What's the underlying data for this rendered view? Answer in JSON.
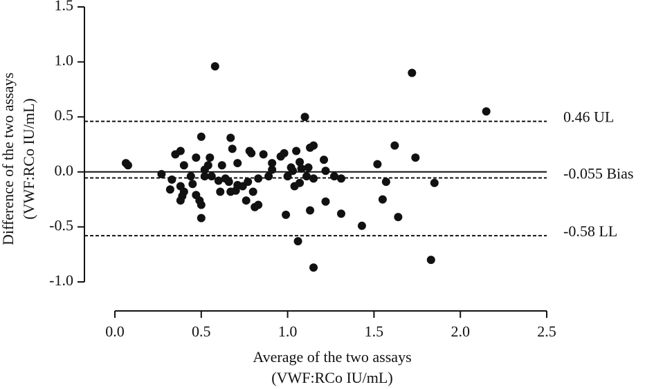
{
  "chart_data": {
    "type": "scatter",
    "xlabel": [
      "Average of the two assays",
      "(VWF:RCo IU/mL)"
    ],
    "ylabel": [
      "Difference of the two assays",
      "(VWF:RCo IU/mL)"
    ],
    "xlim": [
      0,
      2.5
    ],
    "ylim": [
      -1.0,
      1.5
    ],
    "xticks": [
      {
        "value": 0,
        "label": "0.0"
      },
      0.5,
      {
        "value": 1,
        "label": "1.0"
      },
      1.5,
      {
        "value": 2,
        "label": "2.0"
      },
      2.5
    ],
    "yticks": [
      1.5,
      {
        "value": 1,
        "label": "1.0"
      },
      0.5,
      {
        "value": 0,
        "label": "0.0"
      },
      -0.5,
      {
        "value": -1,
        "label": "-1.0"
      }
    ],
    "color": "#111111",
    "reference_lines": [
      {
        "value": 0,
        "style": "solid"
      },
      {
        "value": 0.46,
        "label": "0.46 UL",
        "style": "dashed"
      },
      {
        "value": -0.055,
        "label": "-0.055 Bias",
        "style": "dashed"
      },
      {
        "value": -0.58,
        "label": "-0.58 LL",
        "style": "dashed"
      }
    ],
    "x": [
      0.064,
      0.076,
      0.27,
      0.32,
      0.33,
      0.35,
      0.38,
      0.38,
      0.38,
      0.39,
      0.4,
      0.4,
      0.44,
      0.45,
      0.47,
      0.47,
      0.49,
      0.5,
      0.5,
      0.5,
      0.52,
      0.52,
      0.54,
      0.55,
      0.56,
      0.58,
      0.6,
      0.61,
      0.62,
      0.64,
      0.66,
      0.67,
      0.68,
      0.67,
      0.7,
      0.71,
      0.71,
      0.74,
      0.76,
      0.77,
      0.78,
      0.79,
      0.8,
      0.81,
      0.83,
      0.83,
      0.86,
      0.89,
      0.91,
      0.91,
      0.96,
      0.98,
      0.99,
      1.0,
      1.02,
      1.03,
      1.04,
      1.05,
      1.06,
      1.07,
      1.07,
      1.08,
      1.1,
      1.11,
      1.12,
      1.13,
      1.13,
      1.15,
      1.15,
      1.15,
      1.21,
      1.22,
      1.22,
      1.27,
      1.31,
      1.31,
      1.43,
      1.52,
      1.55,
      1.57,
      1.62,
      1.64,
      1.72,
      1.74,
      1.83,
      1.85,
      2.15
    ],
    "y": [
      0.08,
      0.06,
      -0.02,
      -0.16,
      -0.07,
      0.16,
      0.19,
      -0.13,
      -0.26,
      -0.22,
      0.06,
      -0.18,
      -0.04,
      -0.11,
      -0.21,
      0.13,
      -0.26,
      -0.3,
      -0.42,
      0.32,
      -0.04,
      0.02,
      0.06,
      0.13,
      -0.04,
      0.96,
      -0.08,
      -0.18,
      0.06,
      -0.06,
      -0.09,
      0.31,
      0.21,
      -0.18,
      -0.17,
      0.08,
      -0.12,
      -0.13,
      -0.26,
      -0.09,
      0.19,
      0.17,
      -0.18,
      -0.32,
      -0.3,
      -0.06,
      0.16,
      -0.04,
      0.02,
      0.08,
      0.14,
      0.17,
      -0.39,
      -0.04,
      0.04,
      0.01,
      -0.13,
      0.19,
      -0.63,
      0.09,
      -0.1,
      0.03,
      0.5,
      -0.04,
      0.04,
      0.22,
      -0.35,
      0.24,
      -0.87,
      -0.06,
      0.11,
      -0.27,
      0.01,
      -0.04,
      -0.38,
      -0.06,
      -0.49,
      0.07,
      -0.25,
      -0.09,
      0.24,
      -0.41,
      0.9,
      0.13,
      -0.8,
      -0.1,
      0.55
    ]
  }
}
